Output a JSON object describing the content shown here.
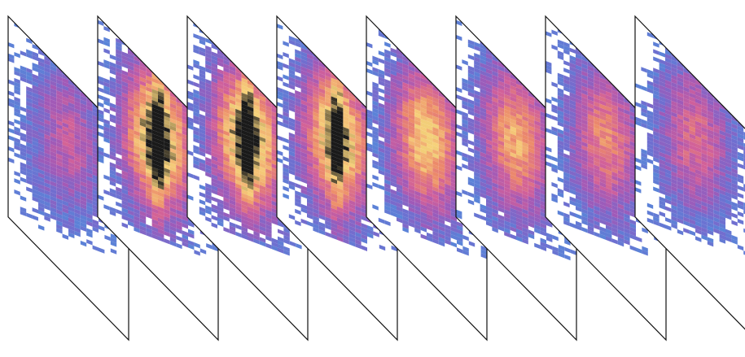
{
  "figure": {
    "panel_count": 8,
    "panels": [
      {
        "peak": 0.45,
        "dark_core": false
      },
      {
        "peak": 1.0,
        "dark_core": true
      },
      {
        "peak": 1.0,
        "dark_core": true
      },
      {
        "peak": 0.95,
        "dark_core": true
      },
      {
        "peak": 0.85,
        "dark_core": false
      },
      {
        "peak": 0.75,
        "dark_core": false
      },
      {
        "peak": 0.65,
        "dark_core": false
      },
      {
        "peak": 0.55,
        "dark_core": false
      }
    ],
    "colormap": [
      "#ffffff",
      "#4f8fdc",
      "#6f6fd0",
      "#a05ab8",
      "#d1609a",
      "#ec8a6a",
      "#f6d27a",
      "#1a1a1a"
    ],
    "frame_color": "#111111"
  }
}
